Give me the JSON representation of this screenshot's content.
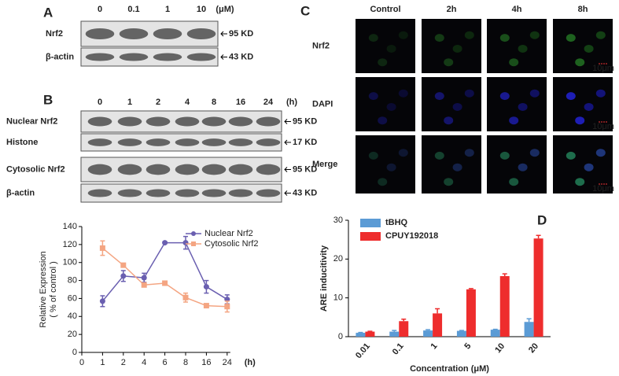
{
  "panels": {
    "A": {
      "letter": "A",
      "columns": [
        "0",
        "0.1",
        "1",
        "10"
      ],
      "unit": "(μM)",
      "rows": [
        {
          "label": "Nrf2",
          "size": "95 KD"
        },
        {
          "label": "β-actin",
          "size": "43 KD"
        }
      ]
    },
    "B": {
      "letter": "B",
      "columns": [
        "0",
        "1",
        "2",
        "4",
        "8",
        "16",
        "24"
      ],
      "unit": "(h)",
      "rows": [
        {
          "label": "Nuclear Nrf2",
          "size": "95 KD"
        },
        {
          "label": "Histone",
          "size": "17 KD"
        },
        {
          "label": "Cytosolic Nrf2",
          "size": "95 KD"
        },
        {
          "label": "β-actin",
          "size": "43 KD"
        }
      ]
    },
    "C": {
      "letter": "C",
      "columns": [
        "Control",
        "2h",
        "4h",
        "8h"
      ],
      "rows": [
        "Nrf2",
        "DAPI",
        "Merge"
      ],
      "scale": "10μm"
    },
    "D": {
      "letter": "D"
    }
  },
  "chart_data": [
    {
      "type": "line",
      "ylabel": [
        "Relative Expression",
        "( % of control )"
      ],
      "xunit": "(h)",
      "categories": [
        "0",
        "1",
        "2",
        "4",
        "6",
        "8",
        "16",
        "24"
      ],
      "ylim": [
        0,
        140
      ],
      "yticks": [
        0,
        20,
        40,
        60,
        80,
        100,
        120,
        140
      ],
      "series": [
        {
          "name": "Nuclear Nrf2",
          "color": "#6a5fb0",
          "values": [
            null,
            57,
            85,
            83,
            122,
            122,
            73,
            59
          ],
          "errors": [
            null,
            6,
            6,
            5,
            1,
            7,
            7,
            5
          ]
        },
        {
          "name": "Cytosolic Nrf2",
          "color": "#f4a582",
          "values": [
            null,
            116,
            97,
            75,
            77,
            61,
            52,
            51
          ],
          "errors": [
            null,
            8,
            2,
            2,
            1,
            5,
            1,
            6
          ]
        }
      ]
    },
    {
      "type": "bar",
      "ylabel": "ARE inducitivity",
      "xlabel": "Concentration (μM)",
      "categories": [
        "0.01",
        "0.1",
        "1",
        "5",
        "10",
        "20"
      ],
      "ylim": [
        0,
        30
      ],
      "yticks": [
        0,
        10,
        20,
        30
      ],
      "series": [
        {
          "name": "tBHQ",
          "color": "#5b9bd5",
          "values": [
            1.0,
            1.3,
            1.6,
            1.5,
            1.8,
            3.8
          ],
          "errors": [
            0.1,
            0.3,
            0.2,
            0.1,
            0.1,
            0.8
          ]
        },
        {
          "name": "CPUY192018",
          "color": "#ee2d2d",
          "values": [
            1.3,
            4.0,
            6.0,
            12.2,
            15.6,
            25.3
          ],
          "errors": [
            0.1,
            0.5,
            1.2,
            0.2,
            0.6,
            0.8
          ]
        }
      ]
    }
  ]
}
